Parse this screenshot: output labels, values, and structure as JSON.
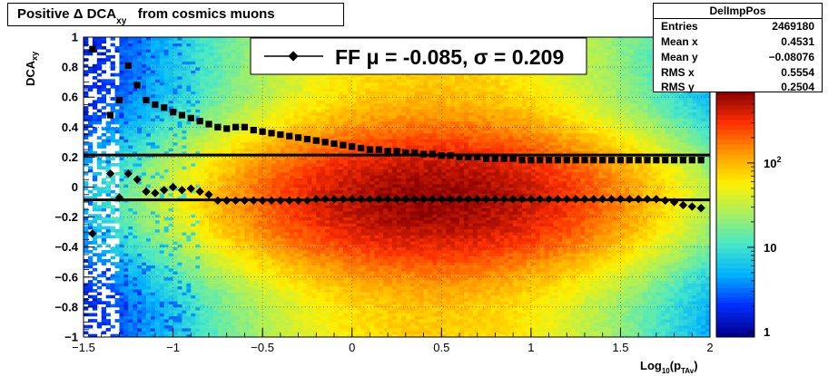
{
  "title": {
    "prefix": "Positive Δ DCA",
    "subscript": "xy",
    "suffix": "from cosmics muons"
  },
  "stats": {
    "name": "DelImpPos",
    "rows": [
      {
        "label": "Entries",
        "value": "2469180"
      },
      {
        "label": "Mean x",
        "value": "0.4531"
      },
      {
        "label": "Mean y",
        "value": "−0.08076"
      },
      {
        "label": "RMS x",
        "value": "0.5554"
      },
      {
        "label": "RMS y",
        "value": "0.2504"
      }
    ]
  },
  "fit_legend": "FF μ = -0.085, σ =   0.209",
  "colors": {
    "palette": [
      "#00008f",
      "#0030ff",
      "#00b4ff",
      "#48e8c8",
      "#a8f060",
      "#fff000",
      "#ff9a00",
      "#ff3000",
      "#8a0000"
    ]
  },
  "chart_data": {
    "type": "heatmap",
    "title": "Positive Δ DCA xy from cosmics muons",
    "xlabel": "Log10(pTAv)",
    "ylabel": "DCAxy",
    "xlim": [
      -1.5,
      2
    ],
    "ylim": [
      -1,
      1
    ],
    "x_ticks": [
      "−1.5",
      "−1",
      "−0.5",
      "0",
      "0.5",
      "1",
      "1.5",
      "2"
    ],
    "y_ticks": [
      "−1",
      "−0.8",
      "−0.6",
      "−0.4",
      "−0.2",
      "0",
      "0.2",
      "0.4",
      "0.6",
      "0.8",
      "1"
    ],
    "z_scale": "log",
    "z_ticks": [
      "1",
      "10",
      "10^2"
    ],
    "z_range": [
      1,
      700
    ],
    "grid": true,
    "peak_x": 0.45,
    "mean_y": -0.08,
    "fit_lines": {
      "mu": -0.085,
      "sigma": 0.209,
      "upper": 0.214,
      "lower": -0.085
    },
    "series": [
      {
        "name": "mean",
        "x": [
          -1.45,
          -1.35,
          -1.3,
          -1.25,
          -1.2,
          -1.15,
          -1.1,
          -1.05,
          -1.0,
          -0.95,
          -0.9,
          -0.85,
          -0.8,
          -0.75,
          -0.7,
          -0.65,
          -0.6,
          -0.55,
          -0.5,
          -0.45,
          -0.4,
          -0.35,
          -0.3,
          -0.25,
          -0.2,
          -0.15,
          -0.1,
          -0.05,
          0.0,
          0.05,
          0.1,
          0.15,
          0.2,
          0.25,
          0.3,
          0.35,
          0.4,
          0.45,
          0.5,
          0.55,
          0.6,
          0.65,
          0.7,
          0.75,
          0.8,
          0.85,
          0.9,
          0.95,
          1.0,
          1.05,
          1.1,
          1.15,
          1.2,
          1.25,
          1.3,
          1.35,
          1.4,
          1.45,
          1.5,
          1.55,
          1.6,
          1.65,
          1.7,
          1.75,
          1.8,
          1.85,
          1.9,
          1.95
        ],
        "y": [
          -0.31,
          0.09,
          -0.07,
          0.09,
          0.05,
          -0.03,
          -0.04,
          -0.02,
          0.0,
          -0.02,
          -0.01,
          -0.03,
          -0.05,
          -0.09,
          -0.09,
          -0.09,
          -0.09,
          -0.09,
          -0.09,
          -0.09,
          -0.09,
          -0.09,
          -0.09,
          -0.09,
          -0.08,
          -0.08,
          -0.08,
          -0.08,
          -0.08,
          -0.08,
          -0.08,
          -0.08,
          -0.08,
          -0.08,
          -0.08,
          -0.08,
          -0.08,
          -0.08,
          -0.08,
          -0.08,
          -0.08,
          -0.08,
          -0.08,
          -0.08,
          -0.08,
          -0.08,
          -0.08,
          -0.08,
          -0.08,
          -0.08,
          -0.08,
          -0.08,
          -0.08,
          -0.08,
          -0.08,
          -0.08,
          -0.08,
          -0.08,
          -0.08,
          -0.08,
          -0.08,
          -0.08,
          -0.08,
          -0.09,
          -0.1,
          -0.12,
          -0.13,
          -0.14
        ]
      },
      {
        "name": "width",
        "x": [
          -1.45,
          -1.35,
          -1.3,
          -1.25,
          -1.2,
          -1.15,
          -1.1,
          -1.05,
          -1.0,
          -0.95,
          -0.9,
          -0.85,
          -0.8,
          -0.75,
          -0.7,
          -0.65,
          -0.6,
          -0.55,
          -0.5,
          -0.45,
          -0.4,
          -0.35,
          -0.3,
          -0.25,
          -0.2,
          -0.15,
          -0.1,
          -0.05,
          0.0,
          0.05,
          0.1,
          0.15,
          0.2,
          0.25,
          0.3,
          0.35,
          0.4,
          0.45,
          0.5,
          0.55,
          0.6,
          0.65,
          0.7,
          0.75,
          0.8,
          0.85,
          0.9,
          0.95,
          1.0,
          1.05,
          1.1,
          1.15,
          1.2,
          1.25,
          1.3,
          1.35,
          1.4,
          1.45,
          1.5,
          1.55,
          1.6,
          1.65,
          1.7,
          1.75,
          1.8,
          1.85,
          1.9,
          1.95
        ],
        "y": [
          0.92,
          0.48,
          0.58,
          0.81,
          0.68,
          0.58,
          0.55,
          0.53,
          0.5,
          0.48,
          0.46,
          0.44,
          0.42,
          0.4,
          0.39,
          0.4,
          0.4,
          0.38,
          0.37,
          0.36,
          0.35,
          0.34,
          0.33,
          0.32,
          0.31,
          0.3,
          0.29,
          0.28,
          0.27,
          0.26,
          0.25,
          0.25,
          0.24,
          0.24,
          0.23,
          0.23,
          0.22,
          0.22,
          0.21,
          0.21,
          0.2,
          0.2,
          0.2,
          0.19,
          0.19,
          0.19,
          0.19,
          0.18,
          0.18,
          0.18,
          0.18,
          0.18,
          0.18,
          0.18,
          0.18,
          0.18,
          0.18,
          0.18,
          0.18,
          0.18,
          0.18,
          0.18,
          0.18,
          0.18,
          0.18,
          0.18,
          0.18,
          0.18
        ]
      }
    ]
  },
  "axes_text": {
    "x_label_main": "Log",
    "x_label_sub1": "10",
    "x_label_paren": "(p",
    "x_label_sub2": "TAv",
    "x_label_close": ")",
    "y_label_main": "DCA",
    "y_label_sub": "xy"
  }
}
